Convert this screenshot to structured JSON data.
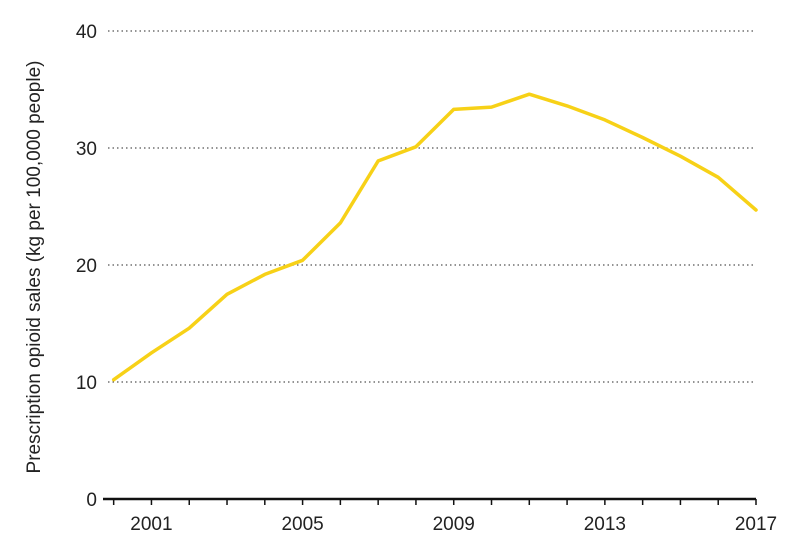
{
  "chart_data": {
    "type": "line",
    "title": "",
    "xlabel": "",
    "ylabel": "Prescription opioid sales (kg per 100,000 people)",
    "xlim": [
      1999.85,
      2017
    ],
    "ylim": [
      0,
      40
    ],
    "x_ticks": [
      2001,
      2005,
      2009,
      2013,
      2017
    ],
    "x_tick_labels": [
      "2001",
      "2005",
      "2009",
      "2013",
      "2017"
    ],
    "y_ticks": [
      0,
      10,
      20,
      30,
      40
    ],
    "y_tick_labels": [
      "0",
      "10",
      "20",
      "30",
      "40"
    ],
    "grid": "horizontal-dotted",
    "legend": "none",
    "series": [
      {
        "x": [
          2000,
          2001,
          2002,
          2003,
          2004,
          2005,
          2006,
          2007,
          2008,
          2009,
          2010,
          2011,
          2012,
          2013,
          2014,
          2015,
          2016,
          2017
        ],
        "values": [
          10.2,
          12.5,
          14.6,
          17.5,
          19.2,
          20.4,
          23.6,
          28.9,
          30.1,
          33.3,
          33.5,
          34.6,
          33.6,
          32.4,
          30.9,
          29.3,
          27.5,
          24.7
        ],
        "color": "#f7d117"
      }
    ]
  },
  "colors": {
    "line": "#f7d117",
    "grid": "#555555",
    "axis": "#111111",
    "text": "#222222"
  }
}
